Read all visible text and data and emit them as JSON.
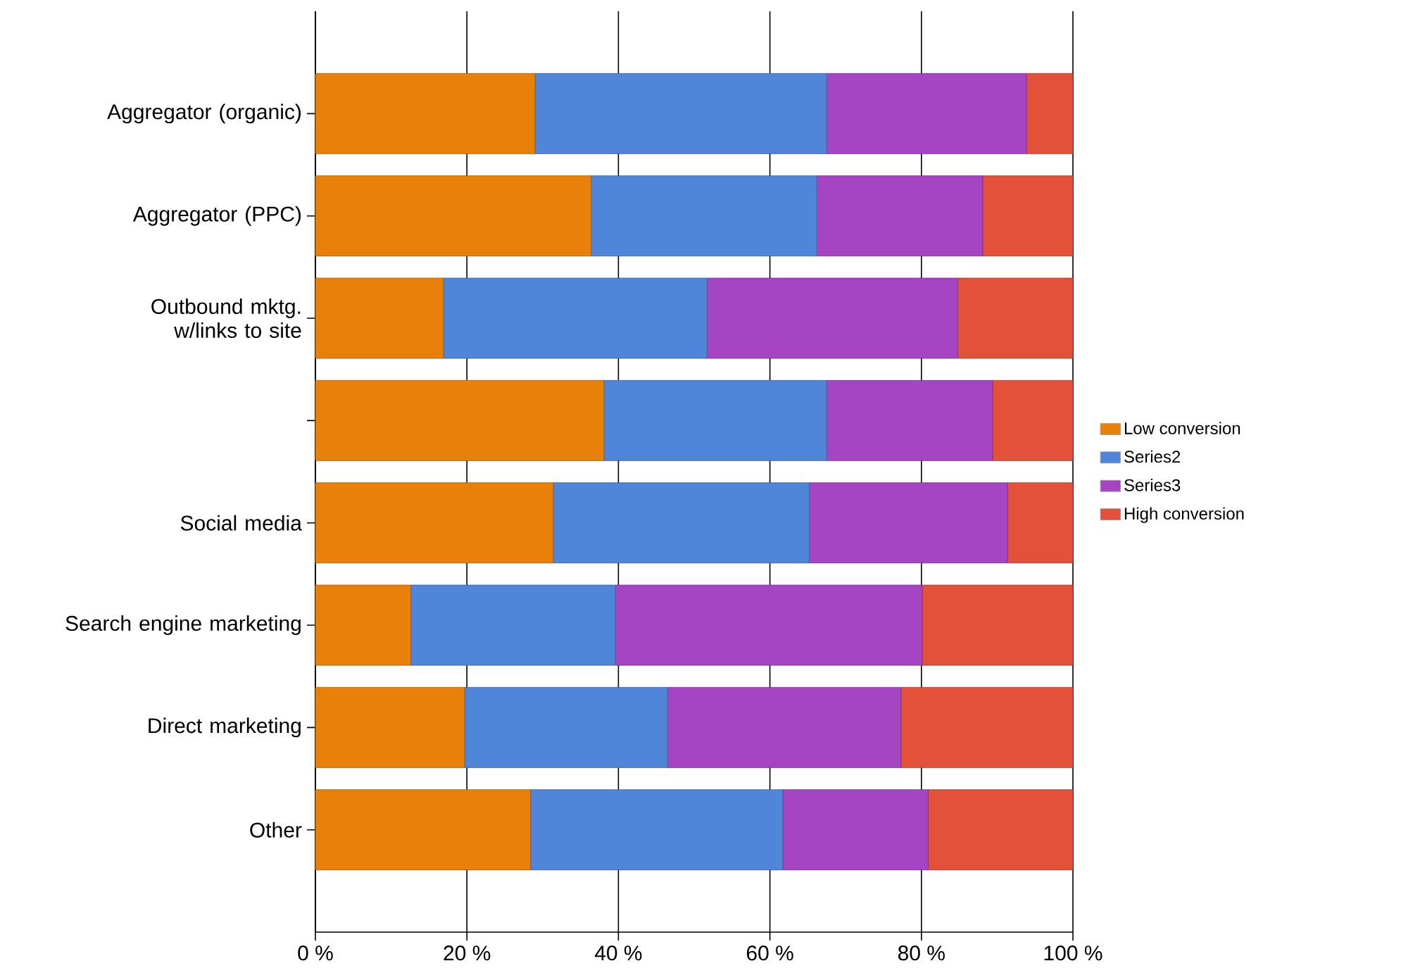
{
  "chart_data": {
    "type": "bar",
    "orientation": "horizontal",
    "stacked": true,
    "categories": [
      "Aggregator (organic)",
      "Aggregator (PPC)",
      "Outbound mktg.\nw/links to site",
      null,
      "Social media",
      "Search engine marketing",
      "Direct marketing",
      "Other"
    ],
    "series": [
      {
        "name": "Low conversion",
        "color": "#e8800a",
        "values": [
          29.0,
          36.4,
          16.9,
          38.1,
          31.4,
          12.6,
          19.7,
          28.4
        ]
      },
      {
        "name": "Series2",
        "color": "#4f86d9",
        "values": [
          38.5,
          29.8,
          34.8,
          29.4,
          33.8,
          27.0,
          26.8,
          33.3
        ]
      },
      {
        "name": "Series3",
        "color": "#a545c4",
        "values": [
          26.4,
          21.9,
          33.1,
          21.9,
          26.2,
          40.5,
          30.8,
          19.2
        ]
      },
      {
        "name": "High conversion",
        "color": "#e4513a",
        "values": [
          6.1,
          11.9,
          15.2,
          10.6,
          8.6,
          19.9,
          22.7,
          19.1
        ]
      }
    ],
    "xlim": [
      0,
      100
    ],
    "xticks": [
      {
        "value": 0,
        "label": "0 %"
      },
      {
        "value": 20,
        "label": "20 %"
      },
      {
        "value": 40,
        "label": "40 %"
      },
      {
        "value": 60,
        "label": "60 %"
      },
      {
        "value": 80,
        "label": "80 %"
      },
      {
        "value": 100,
        "label": "100 %"
      }
    ],
    "grid": "x",
    "legend": "right"
  }
}
